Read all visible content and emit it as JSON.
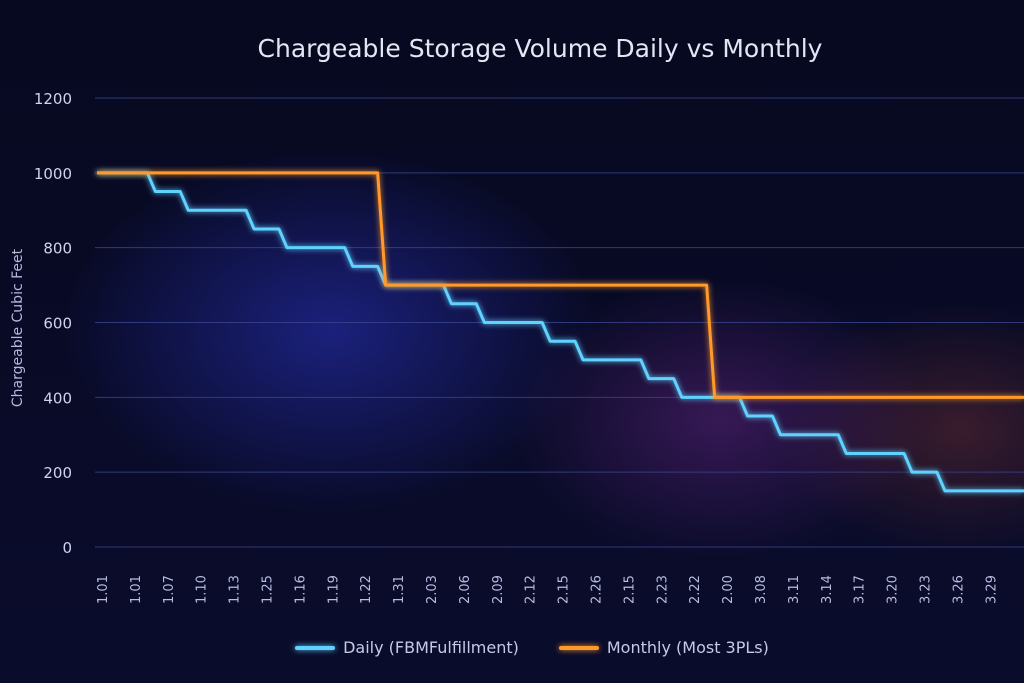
{
  "chart_data": {
    "type": "line",
    "title": "Chargeable Storage Volume Daily vs Monthly",
    "xlabel": "",
    "ylabel": "Chargeable Cubic Feet",
    "ylim": [
      0,
      1200
    ],
    "yticks": [
      0,
      200,
      400,
      600,
      800,
      1000,
      1200
    ],
    "grid": true,
    "legend_placement": "bottom-center",
    "categories": [
      "1.01",
      "1.01",
      "1.07",
      "1.10",
      "1.13",
      "1.25",
      "1.16",
      "1.19",
      "1.22",
      "1.31",
      "2.03",
      "2.06",
      "2.09",
      "2.12",
      "2.15",
      "2.26",
      "2.15",
      "2.23",
      "2.22",
      "2.00",
      "3.08",
      "3.11",
      "3.14",
      "3.17",
      "3.20",
      "3.23",
      "3.26",
      "3.29"
    ],
    "series": [
      {
        "name": "Daily (FBMFulfillment)",
        "color": "#5fd2ff",
        "step": true,
        "values": [
          1000,
          1000,
          950,
          900,
          900,
          850,
          800,
          800,
          750,
          700,
          700,
          650,
          600,
          600,
          550,
          500,
          500,
          450,
          400,
          400,
          350,
          300,
          300,
          250,
          250,
          200,
          150,
          150
        ]
      },
      {
        "name": "Monthly (Most 3PLs)",
        "color": "#ff9a2c",
        "step": true,
        "values": [
          1000,
          1000,
          1000,
          1000,
          1000,
          1000,
          1000,
          1000,
          1000,
          700,
          700,
          700,
          700,
          700,
          700,
          700,
          700,
          700,
          700,
          400,
          400,
          400,
          400,
          400,
          400,
          400,
          400,
          400
        ]
      }
    ]
  }
}
